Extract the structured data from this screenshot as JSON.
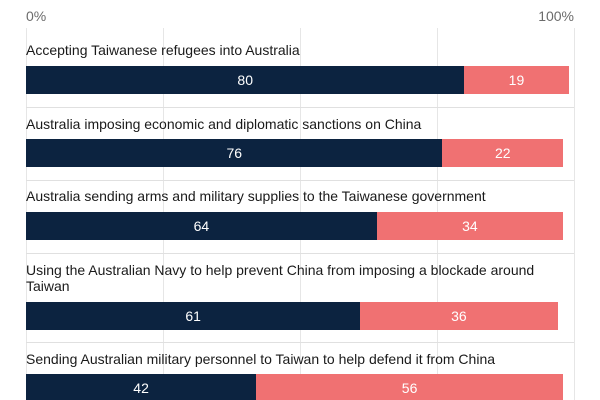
{
  "colors": {
    "support": "#0c2340",
    "oppose": "#f07172"
  },
  "chart_data": {
    "type": "bar",
    "orientation": "horizontal",
    "stacked": true,
    "xlim": [
      0,
      100
    ],
    "xticks": [
      "0%",
      "100%"
    ],
    "gridlines": [
      0,
      25,
      50,
      75,
      100
    ],
    "categories": [
      "Accepting Taiwanese refugees into Australia",
      "Australia imposing economic and diplomatic sanctions on China",
      "Australia sending arms and military supplies to the Taiwanese government",
      "Using the Australian Navy to help prevent China from imposing a blockade around Taiwan",
      "Sending Australian military personnel to Taiwan to help defend it from China"
    ],
    "series": [
      {
        "values": [
          80,
          76,
          64,
          61,
          42
        ]
      },
      {
        "values": [
          19,
          22,
          34,
          36,
          56
        ]
      }
    ]
  }
}
